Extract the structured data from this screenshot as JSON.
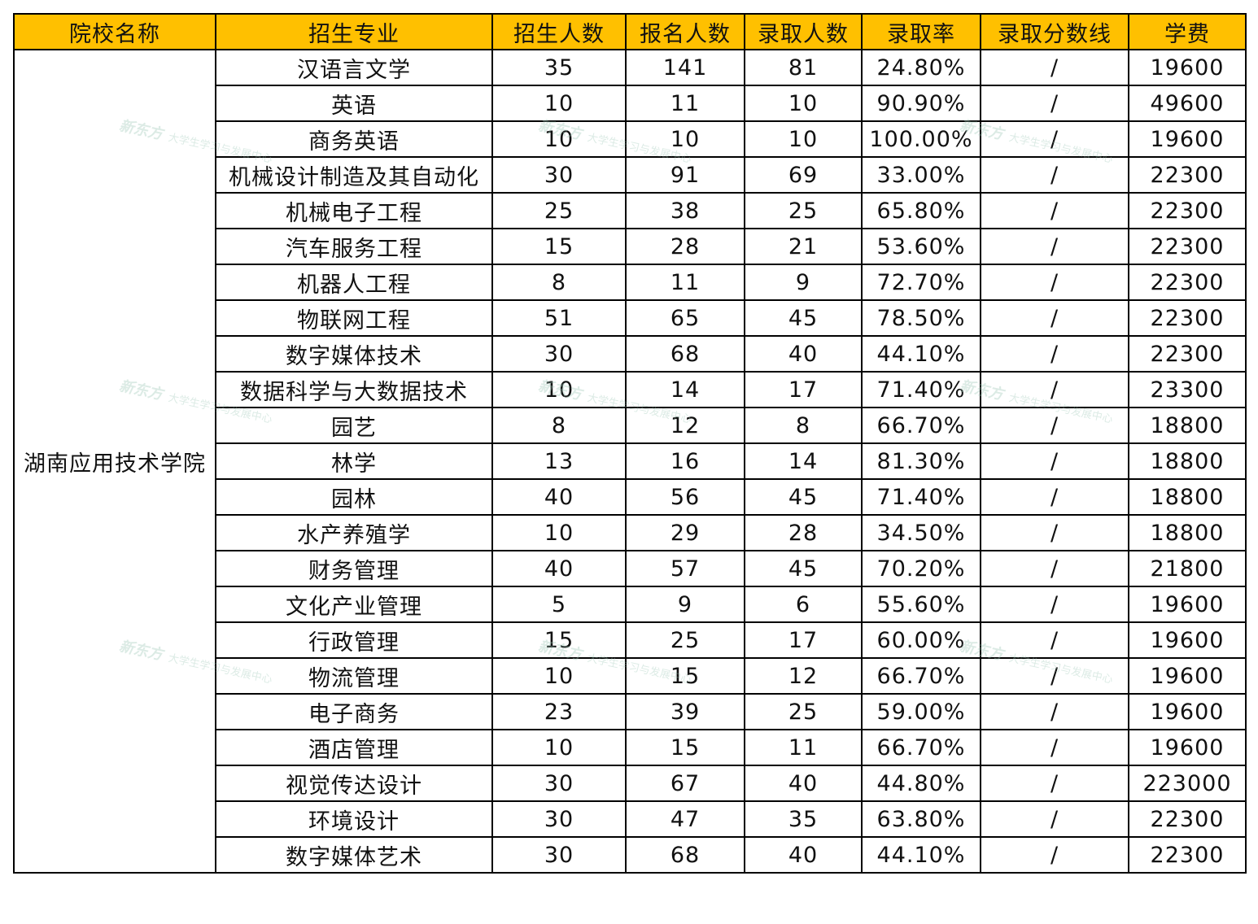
{
  "header_color": "#FFC000",
  "columns": [
    "院校名称",
    "招生专业",
    "招生人数",
    "报名人数",
    "录取人数",
    "录取率",
    "录取分数线",
    "学费"
  ],
  "school": "湖南应用技术学院",
  "watermark": {
    "brand": "新东方",
    "text": "大学生学习与发展中心"
  },
  "rows": [
    [
      "汉语言文学",
      "35",
      "141",
      "81",
      "24.80%",
      "/",
      "19600"
    ],
    [
      "英语",
      "10",
      "11",
      "10",
      "90.90%",
      "/",
      "49600"
    ],
    [
      "商务英语",
      "10",
      "10",
      "10",
      "100.00%",
      "/",
      "19600"
    ],
    [
      "机械设计制造及其自动化",
      "30",
      "91",
      "69",
      "33.00%",
      "/",
      "22300"
    ],
    [
      "机械电子工程",
      "25",
      "38",
      "25",
      "65.80%",
      "/",
      "22300"
    ],
    [
      "汽车服务工程",
      "15",
      "28",
      "21",
      "53.60%",
      "/",
      "22300"
    ],
    [
      "机器人工程",
      "8",
      "11",
      "9",
      "72.70%",
      "/",
      "22300"
    ],
    [
      "物联网工程",
      "51",
      "65",
      "45",
      "78.50%",
      "/",
      "22300"
    ],
    [
      "数字媒体技术",
      "30",
      "68",
      "40",
      "44.10%",
      "/",
      "22300"
    ],
    [
      "数据科学与大数据技术",
      "10",
      "14",
      "17",
      "71.40%",
      "/",
      "23300"
    ],
    [
      "园艺",
      "8",
      "12",
      "8",
      "66.70%",
      "/",
      "18800"
    ],
    [
      "林学",
      "13",
      "16",
      "14",
      "81.30%",
      "/",
      "18800"
    ],
    [
      "园林",
      "40",
      "56",
      "45",
      "71.40%",
      "/",
      "18800"
    ],
    [
      "水产养殖学",
      "10",
      "29",
      "28",
      "34.50%",
      "/",
      "18800"
    ],
    [
      "财务管理",
      "40",
      "57",
      "45",
      "70.20%",
      "/",
      "21800"
    ],
    [
      "文化产业管理",
      "5",
      "9",
      "6",
      "55.60%",
      "/",
      "19600"
    ],
    [
      "行政管理",
      "15",
      "25",
      "17",
      "60.00%",
      "/",
      "19600"
    ],
    [
      "物流管理",
      "10",
      "15",
      "12",
      "66.70%",
      "/",
      "19600"
    ],
    [
      "电子商务",
      "23",
      "39",
      "25",
      "59.00%",
      "/",
      "19600"
    ],
    [
      "酒店管理",
      "10",
      "15",
      "11",
      "66.70%",
      "/",
      "19600"
    ],
    [
      "视觉传达设计",
      "30",
      "67",
      "40",
      "44.80%",
      "/",
      "223000"
    ],
    [
      "环境设计",
      "30",
      "47",
      "35",
      "63.80%",
      "/",
      "22300"
    ],
    [
      "数字媒体艺术",
      "30",
      "68",
      "40",
      "44.10%",
      "/",
      "22300"
    ]
  ]
}
